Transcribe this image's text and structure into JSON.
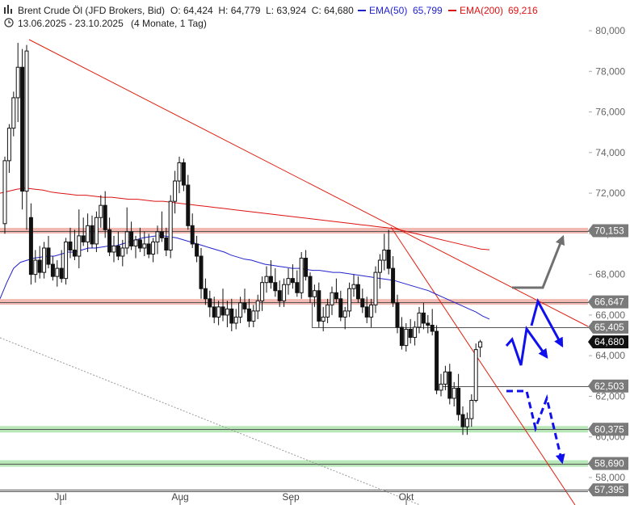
{
  "header": {
    "instrument": "Brent Crude Öl (JFD Brokers, Bid)",
    "ohlc": "O: 64,424  H: 64,779  L: 63,924  C: 64,680",
    "ema50_label": "EMA(50)",
    "ema50_value": "65,799",
    "ema200_label": "EMA(200)",
    "ema200_value": "69,216",
    "range": "13.06.2025 - 23.10.2025",
    "period": "(4 Monate, 1 Tag)"
  },
  "colors": {
    "ema50": "#2222cc",
    "ema200": "#dd1111",
    "trend": "#e02010",
    "resistance_zone": "#f2b8b2",
    "support_zone": "#b7e6b7",
    "forecast_arrow": "#1010ee",
    "bull_arrow": "#707070",
    "candle": "#111111",
    "price_label_bg": "#7a7a7a",
    "last_label_bg": "#111111"
  },
  "chart_data": {
    "type": "candlestick",
    "title": "Brent Crude Öl (JFD Brokers, Bid)",
    "ylim": [
      56.9,
      81.2
    ],
    "y_ticks": [
      "80,000",
      "78,000",
      "76,000",
      "74,000",
      "72,000",
      "70,000",
      "68,000",
      "66,000",
      "64,000",
      "62,000",
      "60,000",
      "58,000"
    ],
    "x_ticks": [
      "Jul",
      "Aug",
      "Sep",
      "Okt"
    ],
    "candles": [
      [
        70.5,
        73.8,
        70.0,
        73.6
      ],
      [
        73.6,
        75.4,
        73.0,
        75.2
      ],
      [
        75.2,
        77.0,
        74.8,
        76.7
      ],
      [
        76.7,
        79.4,
        75.5,
        78.2
      ],
      [
        78.2,
        79.1,
        71.2,
        72.1
      ],
      [
        72.1,
        79.3,
        70.2,
        79.0
      ],
      [
        70.8,
        71.5,
        67.5,
        68.0
      ],
      [
        68.0,
        69.2,
        67.6,
        68.7
      ],
      [
        68.7,
        69.4,
        67.8,
        68.1
      ],
      [
        68.1,
        69.6,
        67.8,
        69.3
      ],
      [
        69.3,
        69.9,
        68.3,
        68.5
      ],
      [
        68.5,
        68.9,
        67.7,
        67.9
      ],
      [
        67.9,
        68.7,
        67.4,
        68.3
      ],
      [
        68.3,
        69.2,
        67.6,
        67.8
      ],
      [
        67.8,
        69.8,
        67.5,
        69.6
      ],
      [
        69.6,
        70.3,
        68.8,
        69.2
      ],
      [
        69.2,
        70.2,
        68.7,
        68.9
      ],
      [
        68.9,
        71.2,
        68.3,
        69.9
      ],
      [
        69.9,
        70.8,
        69.4,
        69.6
      ],
      [
        69.6,
        71.0,
        69.1,
        70.4
      ],
      [
        70.4,
        70.9,
        69.3,
        69.5
      ],
      [
        69.5,
        71.1,
        69.1,
        70.8
      ],
      [
        70.8,
        71.9,
        70.3,
        71.4
      ],
      [
        71.4,
        72.1,
        69.8,
        70.2
      ],
      [
        70.2,
        70.8,
        68.9,
        69.1
      ],
      [
        69.1,
        69.9,
        68.6,
        69.4
      ],
      [
        69.4,
        70.1,
        68.7,
        68.9
      ],
      [
        68.9,
        69.7,
        68.4,
        69.3
      ],
      [
        69.3,
        71.3,
        69.0,
        70.1
      ],
      [
        70.1,
        70.6,
        69.2,
        69.4
      ],
      [
        69.4,
        69.9,
        68.8,
        69.7
      ],
      [
        69.7,
        70.3,
        69.1,
        69.3
      ],
      [
        69.3,
        70.1,
        68.9,
        69.5
      ],
      [
        69.5,
        70.0,
        68.8,
        69.0
      ],
      [
        69.0,
        69.8,
        68.6,
        69.6
      ],
      [
        69.6,
        70.4,
        69.0,
        70.1
      ],
      [
        70.1,
        71.1,
        69.6,
        69.8
      ],
      [
        69.8,
        70.3,
        68.9,
        69.2
      ],
      [
        69.2,
        71.9,
        68.8,
        71.6
      ],
      [
        71.6,
        73.1,
        71.0,
        72.6
      ],
      [
        72.6,
        73.8,
        72.0,
        73.5
      ],
      [
        73.5,
        73.7,
        72.1,
        72.4
      ],
      [
        72.4,
        72.9,
        70.2,
        70.4
      ],
      [
        70.4,
        71.0,
        69.3,
        69.5
      ],
      [
        69.5,
        69.9,
        68.6,
        68.9
      ],
      [
        68.9,
        69.3,
        66.8,
        67.3
      ],
      [
        67.3,
        67.8,
        66.5,
        66.8
      ],
      [
        66.8,
        67.2,
        65.9,
        66.4
      ],
      [
        66.4,
        66.9,
        65.6,
        65.9
      ],
      [
        65.9,
        66.7,
        65.5,
        66.4
      ],
      [
        66.4,
        67.3,
        65.7,
        66.0
      ],
      [
        66.0,
        66.7,
        65.4,
        66.3
      ],
      [
        66.3,
        66.8,
        65.2,
        65.6
      ],
      [
        65.6,
        66.3,
        65.3,
        65.9
      ],
      [
        65.9,
        66.9,
        65.6,
        66.6
      ],
      [
        66.6,
        67.3,
        66.1,
        66.3
      ],
      [
        66.3,
        66.8,
        65.4,
        65.7
      ],
      [
        65.7,
        66.5,
        65.4,
        66.2
      ],
      [
        66.2,
        67.0,
        65.8,
        66.7
      ],
      [
        66.7,
        67.9,
        66.2,
        67.6
      ],
      [
        67.6,
        68.4,
        67.1,
        67.9
      ],
      [
        67.9,
        68.7,
        67.3,
        67.6
      ],
      [
        67.6,
        68.3,
        66.9,
        67.2
      ],
      [
        67.2,
        67.7,
        66.4,
        66.7
      ],
      [
        66.7,
        67.8,
        66.4,
        67.5
      ],
      [
        67.5,
        68.3,
        67.0,
        67.8
      ],
      [
        67.8,
        68.5,
        67.3,
        67.6
      ],
      [
        67.6,
        68.2,
        66.9,
        67.1
      ],
      [
        67.1,
        69.1,
        66.8,
        68.8
      ],
      [
        68.8,
        69.2,
        67.7,
        67.9
      ],
      [
        67.9,
        68.1,
        66.6,
        66.9
      ],
      [
        66.9,
        67.5,
        66.4,
        67.2
      ],
      [
        67.2,
        67.6,
        65.4,
        65.7
      ],
      [
        65.7,
        66.4,
        65.2,
        65.9
      ],
      [
        65.9,
        66.8,
        65.6,
        66.5
      ],
      [
        66.5,
        67.4,
        66.0,
        67.1
      ],
      [
        67.1,
        67.8,
        66.6,
        66.8
      ],
      [
        66.8,
        67.2,
        65.7,
        65.9
      ],
      [
        65.9,
        66.4,
        65.3,
        66.2
      ],
      [
        66.2,
        67.6,
        65.9,
        67.3
      ],
      [
        67.3,
        68.0,
        66.9,
        67.5
      ],
      [
        67.5,
        67.9,
        66.6,
        66.8
      ],
      [
        66.8,
        67.3,
        66.1,
        66.4
      ],
      [
        66.4,
        66.9,
        65.6,
        65.9
      ],
      [
        65.9,
        66.8,
        65.4,
        66.5
      ],
      [
        66.5,
        68.4,
        66.1,
        68.1
      ],
      [
        68.1,
        69.0,
        67.3,
        68.7
      ],
      [
        68.7,
        70.0,
        68.2,
        69.2
      ],
      [
        69.2,
        70.2,
        68.0,
        68.3
      ],
      [
        68.3,
        68.9,
        66.4,
        66.6
      ],
      [
        66.6,
        67.0,
        65.1,
        65.4
      ],
      [
        65.4,
        65.9,
        64.3,
        64.5
      ],
      [
        64.5,
        65.6,
        64.2,
        65.3
      ],
      [
        65.3,
        65.8,
        64.6,
        64.9
      ],
      [
        64.9,
        65.7,
        64.5,
        65.4
      ],
      [
        65.4,
        66.4,
        65.1,
        66.1
      ],
      [
        66.1,
        66.6,
        65.3,
        65.6
      ],
      [
        65.6,
        66.0,
        65.1,
        65.5
      ],
      [
        65.5,
        66.3,
        65.0,
        65.2
      ],
      [
        65.2,
        65.5,
        62.1,
        62.3
      ],
      [
        62.3,
        63.1,
        62.0,
        62.6
      ],
      [
        62.6,
        63.5,
        62.3,
        63.2
      ],
      [
        63.2,
        63.6,
        61.6,
        61.9
      ],
      [
        61.9,
        62.7,
        61.5,
        62.4
      ],
      [
        62.4,
        63.1,
        60.8,
        61.1
      ],
      [
        61.1,
        61.5,
        60.1,
        60.5
      ],
      [
        60.5,
        61.2,
        60.1,
        60.9
      ],
      [
        60.9,
        62.1,
        60.5,
        61.8
      ],
      [
        61.8,
        64.6,
        61.7,
        64.3
      ],
      [
        64.42,
        64.779,
        63.924,
        64.68
      ]
    ],
    "series": [
      {
        "name": "EMA(50)",
        "last": 65.799,
        "values": [
          66.8,
          67.6,
          68.3,
          68.6,
          68.7,
          68.8,
          68.85,
          68.9,
          68.9,
          69.0,
          69.1,
          69.1,
          69.2,
          69.3,
          69.3,
          69.35,
          69.4,
          69.4,
          69.5,
          69.6,
          69.7,
          69.8,
          69.85,
          69.9,
          69.9,
          69.85,
          69.8,
          69.7,
          69.6,
          69.5,
          69.4,
          69.3,
          69.2,
          69.1,
          68.95,
          68.85,
          68.75,
          68.7,
          68.6,
          68.5,
          68.45,
          68.4,
          68.35,
          68.3,
          68.3,
          68.25,
          68.2,
          68.2,
          68.15,
          68.1,
          68.1,
          68.05,
          68.0,
          67.95,
          67.9,
          67.85,
          67.8,
          67.75,
          67.7,
          67.6,
          67.5,
          67.4,
          67.3,
          67.2,
          67.05,
          66.9,
          66.75,
          66.6,
          66.45,
          66.3,
          66.15,
          65.95,
          65.8
        ]
      },
      {
        "name": "EMA(200)",
        "last": 69.216,
        "values": [
          72.0,
          72.1,
          72.2,
          72.25,
          72.2,
          72.15,
          72.05,
          72.0,
          71.95,
          71.9,
          71.9,
          71.85,
          71.8,
          71.8,
          71.75,
          71.7,
          71.7,
          71.65,
          71.6,
          71.6,
          71.55,
          71.5,
          71.45,
          71.4,
          71.35,
          71.3,
          71.25,
          71.2,
          71.15,
          71.1,
          71.05,
          71.0,
          70.95,
          70.9,
          70.85,
          70.8,
          70.75,
          70.7,
          70.65,
          70.6,
          70.55,
          70.5,
          70.45,
          70.4,
          70.35,
          70.3,
          70.25,
          70.15,
          70.05,
          69.95,
          69.85,
          69.75,
          69.65,
          69.55,
          69.45,
          69.35,
          69.25,
          69.216
        ]
      }
    ],
    "price_levels": [
      {
        "value": 70.153,
        "label": "70,153",
        "style": "resistance-zone"
      },
      {
        "value": 66.647,
        "label": "66,647",
        "style": "resistance-zone"
      },
      {
        "value": 65.405,
        "label": "65,405",
        "style": "line"
      },
      {
        "value": 64.68,
        "label": "64,680",
        "style": "last"
      },
      {
        "value": 62.503,
        "label": "62,503",
        "style": "line"
      },
      {
        "value": 60.375,
        "label": "60,375",
        "style": "support-zone"
      },
      {
        "value": 58.69,
        "label": "58,690",
        "style": "support-zone"
      },
      {
        "value": 57.395,
        "label": "57,395",
        "style": "line"
      }
    ]
  }
}
